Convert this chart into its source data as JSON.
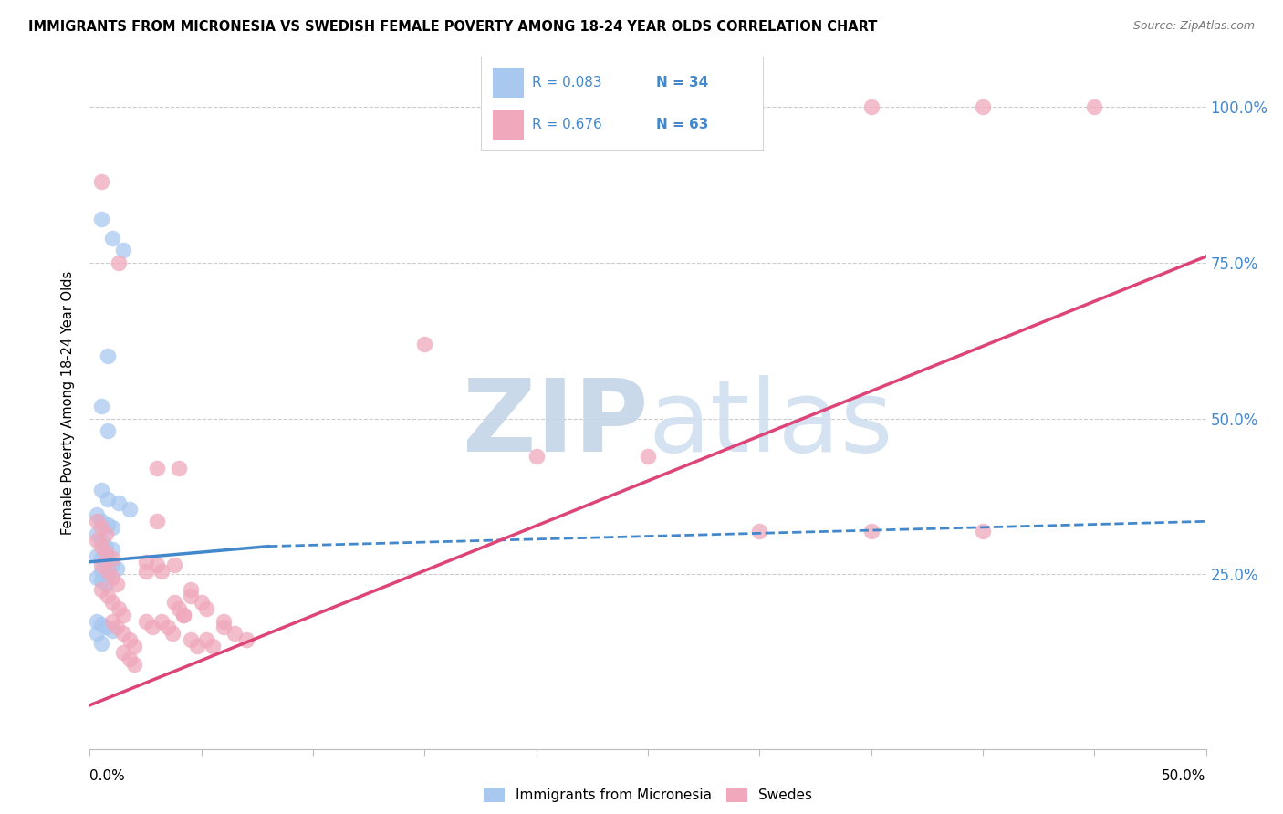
{
  "title": "IMMIGRANTS FROM MICRONESIA VS SWEDISH FEMALE POVERTY AMONG 18-24 YEAR OLDS CORRELATION CHART",
  "source": "Source: ZipAtlas.com",
  "ylabel": "Female Poverty Among 18-24 Year Olds",
  "right_yticks": [
    "100.0%",
    "75.0%",
    "50.0%",
    "25.0%"
  ],
  "right_ytick_vals": [
    1.0,
    0.75,
    0.5,
    0.25
  ],
  "legend_label_blue": "Immigrants from Micronesia",
  "legend_label_pink": "Swedes",
  "blue_color": "#a8c8f0",
  "pink_color": "#f0a8bc",
  "trend_blue_color": "#4488cc",
  "trend_pink_color": "#dd4477",
  "watermark_zip": "ZIP",
  "watermark_atlas": "atlas",
  "watermark_color": "#d0dff0",
  "blue_scatter": [
    [
      0.005,
      0.82
    ],
    [
      0.01,
      0.79
    ],
    [
      0.015,
      0.77
    ],
    [
      0.008,
      0.6
    ],
    [
      0.005,
      0.52
    ],
    [
      0.008,
      0.48
    ],
    [
      0.005,
      0.385
    ],
    [
      0.008,
      0.37
    ],
    [
      0.013,
      0.365
    ],
    [
      0.018,
      0.355
    ],
    [
      0.003,
      0.345
    ],
    [
      0.005,
      0.335
    ],
    [
      0.008,
      0.33
    ],
    [
      0.01,
      0.325
    ],
    [
      0.003,
      0.315
    ],
    [
      0.005,
      0.305
    ],
    [
      0.007,
      0.295
    ],
    [
      0.01,
      0.29
    ],
    [
      0.003,
      0.28
    ],
    [
      0.005,
      0.275
    ],
    [
      0.007,
      0.27
    ],
    [
      0.01,
      0.265
    ],
    [
      0.012,
      0.26
    ],
    [
      0.005,
      0.255
    ],
    [
      0.008,
      0.25
    ],
    [
      0.003,
      0.245
    ],
    [
      0.005,
      0.24
    ],
    [
      0.007,
      0.235
    ],
    [
      0.003,
      0.175
    ],
    [
      0.005,
      0.17
    ],
    [
      0.007,
      0.165
    ],
    [
      0.01,
      0.16
    ],
    [
      0.003,
      0.155
    ],
    [
      0.005,
      0.14
    ]
  ],
  "pink_scatter": [
    [
      0.003,
      0.335
    ],
    [
      0.005,
      0.325
    ],
    [
      0.007,
      0.315
    ],
    [
      0.003,
      0.305
    ],
    [
      0.005,
      0.295
    ],
    [
      0.007,
      0.285
    ],
    [
      0.01,
      0.275
    ],
    [
      0.005,
      0.265
    ],
    [
      0.008,
      0.255
    ],
    [
      0.01,
      0.245
    ],
    [
      0.012,
      0.235
    ],
    [
      0.005,
      0.225
    ],
    [
      0.008,
      0.215
    ],
    [
      0.01,
      0.205
    ],
    [
      0.013,
      0.195
    ],
    [
      0.015,
      0.185
    ],
    [
      0.01,
      0.175
    ],
    [
      0.012,
      0.165
    ],
    [
      0.015,
      0.155
    ],
    [
      0.018,
      0.145
    ],
    [
      0.02,
      0.135
    ],
    [
      0.015,
      0.125
    ],
    [
      0.018,
      0.115
    ],
    [
      0.02,
      0.105
    ],
    [
      0.025,
      0.27
    ],
    [
      0.025,
      0.255
    ],
    [
      0.025,
      0.175
    ],
    [
      0.028,
      0.165
    ],
    [
      0.03,
      0.335
    ],
    [
      0.03,
      0.265
    ],
    [
      0.032,
      0.255
    ],
    [
      0.032,
      0.175
    ],
    [
      0.035,
      0.165
    ],
    [
      0.037,
      0.155
    ],
    [
      0.038,
      0.265
    ],
    [
      0.038,
      0.205
    ],
    [
      0.04,
      0.195
    ],
    [
      0.042,
      0.185
    ],
    [
      0.042,
      0.185
    ],
    [
      0.045,
      0.225
    ],
    [
      0.045,
      0.215
    ],
    [
      0.045,
      0.145
    ],
    [
      0.048,
      0.135
    ],
    [
      0.05,
      0.205
    ],
    [
      0.052,
      0.195
    ],
    [
      0.052,
      0.145
    ],
    [
      0.055,
      0.135
    ],
    [
      0.06,
      0.175
    ],
    [
      0.06,
      0.165
    ],
    [
      0.065,
      0.155
    ],
    [
      0.07,
      0.145
    ],
    [
      0.005,
      0.88
    ],
    [
      0.013,
      0.75
    ],
    [
      0.03,
      0.42
    ],
    [
      0.04,
      0.42
    ],
    [
      0.15,
      0.62
    ],
    [
      0.2,
      0.44
    ],
    [
      0.25,
      0.44
    ],
    [
      0.3,
      0.32
    ],
    [
      0.35,
      0.32
    ],
    [
      0.4,
      0.32
    ],
    [
      0.35,
      1.0
    ],
    [
      0.4,
      1.0
    ],
    [
      0.45,
      1.0
    ]
  ],
  "xmin": 0.0,
  "xmax": 0.5,
  "ymin": -0.03,
  "ymax": 1.08,
  "blue_trend_x": [
    0.0,
    0.08,
    0.5
  ],
  "blue_trend_y": [
    0.27,
    0.295,
    0.335
  ],
  "pink_trend_x": [
    0.0,
    0.5
  ],
  "pink_trend_y": [
    0.04,
    0.76
  ]
}
